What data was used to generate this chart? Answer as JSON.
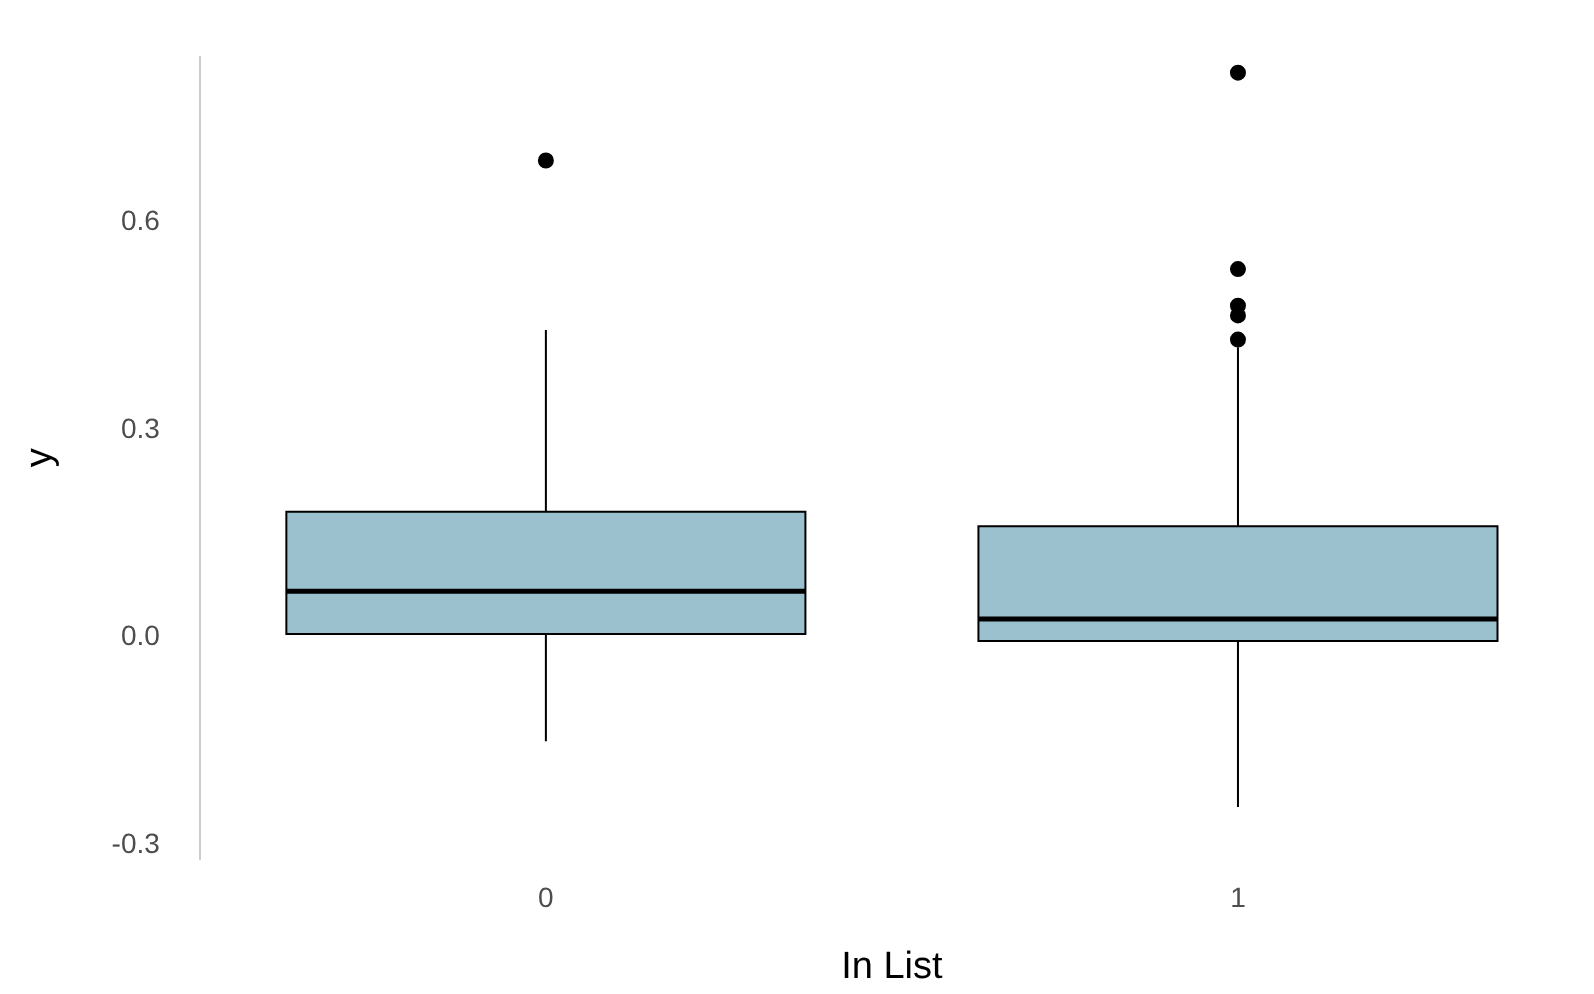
{
  "chart_data": {
    "type": "box",
    "xlabel": "In List",
    "ylabel": "y",
    "categories": [
      "0",
      "1"
    ],
    "color": "#9bc1cf",
    "boxes": [
      {
        "low": -0.15,
        "q1": 0.005,
        "median": 0.067,
        "q3": 0.182,
        "high": 0.445,
        "outliers": [
          0.69
        ]
      },
      {
        "low": -0.245,
        "q1": -0.005,
        "median": 0.027,
        "q3": 0.161,
        "high": 0.42,
        "outliers": [
          0.817,
          0.533,
          0.48,
          0.466,
          0.431
        ]
      }
    ],
    "ylim": [
      -0.32,
      0.84
    ],
    "yticks": [
      -0.3,
      {
        "value": 0,
        "label": "0.0"
      },
      0.3,
      0.6
    ],
    "grid": false,
    "legend": false
  }
}
